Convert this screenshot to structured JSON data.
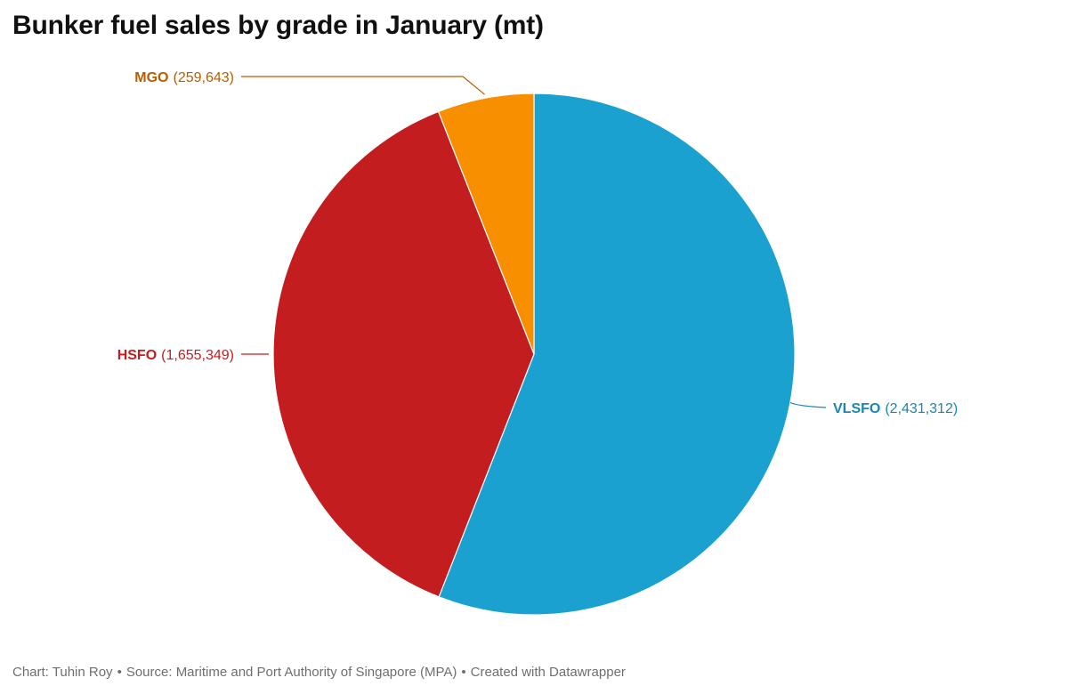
{
  "title": "Bunker fuel sales by grade in January (mt)",
  "footer": {
    "credit": "Chart: Tuhin Roy",
    "source": "Source: Maritime and Port Authority of Singapore (MPA)",
    "tool": "Created with Datawrapper",
    "separator": "•"
  },
  "chart_data": {
    "type": "pie",
    "title": "Bunker fuel sales by grade in January (mt)",
    "start": "12 o'clock",
    "direction": "clockwise",
    "legend": "none (direct labels)",
    "slices": [
      {
        "name": "VLSFO",
        "value": 2431312,
        "value_label": "(2,431,312)",
        "color": "#1ba1cf",
        "label_color": "#1a86b3",
        "side": "right"
      },
      {
        "name": "HSFO",
        "value": 1655349,
        "value_label": "(1,655,349)",
        "color": "#c41d1f",
        "label_color": "#c41d1f",
        "side": "left"
      },
      {
        "name": "MGO",
        "value": 259643,
        "value_label": "(259,643)",
        "color": "#f78f00",
        "label_color": "#b85e00",
        "side": "left"
      }
    ]
  }
}
